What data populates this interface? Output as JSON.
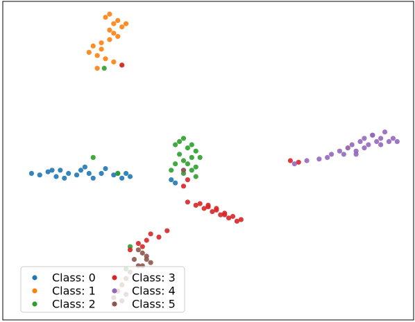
{
  "chart_data": {
    "type": "scatter",
    "xlim": [
      0,
      100
    ],
    "ylim": [
      0,
      100
    ],
    "legend": "lower left",
    "series": [
      {
        "name": "Class: 0",
        "color": "#1f77b4",
        "x": [
          7,
          9,
          11,
          13,
          14,
          16,
          18,
          19,
          21,
          22,
          24,
          25,
          27,
          28,
          29,
          30,
          31,
          20,
          15,
          12,
          41,
          42
        ],
        "y": [
          46,
          45.5,
          46.5,
          45,
          47,
          46,
          45.5,
          47,
          46,
          44.5,
          46,
          47.5,
          45.5,
          46,
          44.5,
          46,
          45,
          48,
          44.5,
          47,
          44,
          43
        ]
      },
      {
        "name": "Class: 1",
        "color": "#ff7f0e",
        "x": [
          25,
          26,
          27,
          28,
          29,
          30,
          27,
          26,
          24,
          22,
          21,
          23,
          25,
          27,
          29,
          24,
          23,
          26,
          28,
          84
        ],
        "y": [
          95,
          96,
          93,
          94,
          92,
          93,
          90,
          88,
          87,
          86,
          84,
          83,
          82,
          81,
          80,
          85,
          79,
          91,
          89,
          54
        ]
      },
      {
        "name": "Class: 2",
        "color": "#2ca02c",
        "x": [
          42,
          43,
          44,
          45,
          46,
          47,
          48,
          43,
          44,
          45,
          46,
          47,
          41,
          42,
          44,
          46,
          47,
          24.7,
          22,
          28,
          31,
          30
        ],
        "y": [
          55,
          56,
          57,
          54,
          55,
          53,
          51,
          52,
          50,
          49,
          51,
          48,
          47,
          49,
          46,
          47,
          45,
          79,
          51,
          46,
          23,
          16
        ]
      },
      {
        "name": "Class: 3",
        "color": "#d62728",
        "x": [
          45,
          47,
          48,
          49,
          50,
          51,
          52,
          53,
          54,
          55,
          56,
          57,
          58,
          50,
          52,
          54,
          31,
          33,
          35,
          36,
          38,
          40,
          34,
          70,
          72,
          29,
          44,
          45
        ],
        "y": [
          37,
          36,
          36.5,
          35,
          35.5,
          34,
          34.5,
          33,
          33.5,
          32,
          32.5,
          31,
          31.5,
          36,
          35,
          33,
          22,
          24,
          25,
          27,
          26,
          28,
          23,
          50,
          49.5,
          80,
          42,
          44
        ]
      },
      {
        "name": "Class: 4",
        "color": "#9467bd",
        "x": [
          71,
          74,
          77,
          79,
          80,
          82,
          83,
          84,
          85,
          86,
          87,
          88,
          89,
          90,
          91,
          92,
          93,
          94,
          95,
          96,
          86,
          88,
          90,
          92,
          44
        ],
        "y": [
          49,
          50,
          50.5,
          51,
          52,
          53,
          52,
          54,
          55,
          53,
          56,
          57,
          55,
          58,
          56,
          57,
          59,
          56,
          57,
          56,
          52,
          54,
          58,
          55,
          47
        ]
      },
      {
        "name": "Class: 5",
        "color": "#8c564b",
        "x": [
          33,
          34,
          35,
          36,
          34,
          35,
          32,
          33,
          30,
          29,
          28,
          27,
          29,
          30,
          31,
          44
        ],
        "y": [
          22,
          21,
          19,
          18,
          17,
          20,
          19,
          17,
          13,
          11,
          9,
          7,
          6,
          8,
          15,
          47
        ]
      }
    ]
  }
}
